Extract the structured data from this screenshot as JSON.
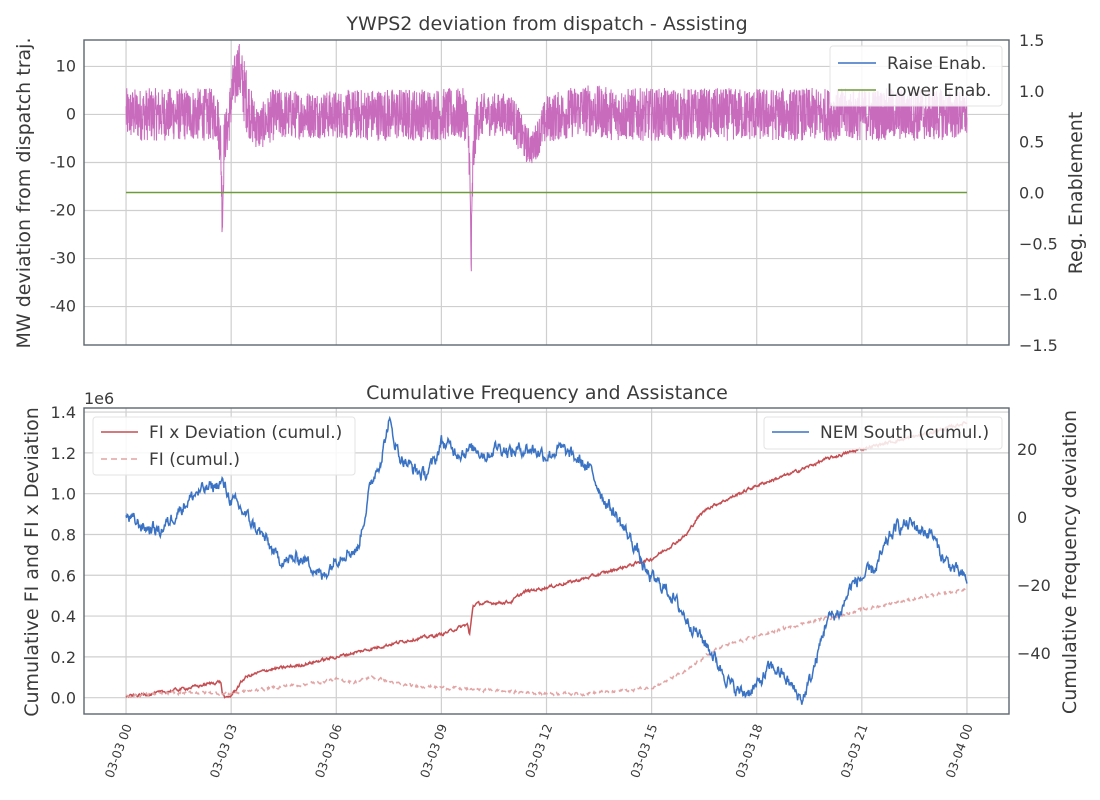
{
  "chart_data": [
    {
      "type": "line",
      "title": "YWPS2 deviation from dispatch - Assisting",
      "ylabel": "MW deviation from dispatch traj.",
      "y2label": "Reg. Enablement",
      "ylim": [
        -48,
        15.5
      ],
      "y2lim": [
        -1.5,
        1.5
      ],
      "yticks": [
        10,
        0,
        -10,
        -20,
        -30,
        -40
      ],
      "y2ticks": [
        1.5,
        1.0,
        0.5,
        0.0,
        -0.5,
        -1.0,
        -1.5
      ],
      "y2tick_labels": [
        "1.5",
        "1.0",
        "0.5",
        "0.0",
        "−0.5",
        "−1.0",
        "−1.5"
      ],
      "xlim": [
        -1.2,
        25.2
      ],
      "x_unit": "hours since 03-03 00:00",
      "legend_position": "upper right",
      "series": [
        {
          "name": "MW deviation",
          "color": "#c86bbd",
          "axis": "left",
          "style": "noisy",
          "x": [
            0,
            1,
            2,
            2.6,
            2.7,
            2.75,
            2.8,
            2.9,
            3.0,
            3.2,
            3.4,
            3.6,
            3.8,
            4.2,
            5,
            6,
            7,
            8,
            9,
            9.7,
            9.8,
            9.85,
            9.9,
            10.0,
            10.2,
            10.5,
            11,
            11.2,
            11.4,
            11.6,
            12,
            13,
            14,
            15,
            16,
            17,
            18,
            19,
            20,
            21,
            22,
            23,
            24
          ],
          "y": [
            0,
            0,
            0,
            0,
            -6,
            -22,
            -5,
            -3,
            3,
            10,
            4,
            -1,
            -3,
            0,
            0,
            0,
            0,
            0,
            0,
            0,
            -8,
            -32,
            -10,
            -1,
            0,
            0,
            0,
            -3,
            -6,
            -7,
            -1,
            1,
            0,
            0,
            0,
            0,
            0,
            0,
            0,
            0,
            0,
            0,
            0
          ],
          "noise": [
            5.5,
            5.5,
            5.5,
            5.5,
            5.5,
            6.5,
            5.5,
            5,
            6,
            6,
            7,
            5.5,
            4.5,
            5.5,
            5,
            5,
            5.5,
            5.5,
            5.5,
            5.5,
            5.5,
            8,
            5.5,
            5,
            4.5,
            4.5,
            4.5,
            4.5,
            4,
            3.5,
            5,
            5.5,
            5.5,
            5.5,
            5.5,
            5.5,
            5.5,
            5.5,
            5.5,
            5.5,
            5.5,
            5.5,
            5
          ]
        },
        {
          "name": "Raise Enab.",
          "color": "#3a72c4",
          "axis": "right",
          "x": [],
          "y": []
        },
        {
          "name": "Lower Enab.",
          "color": "#6d9a3a",
          "axis": "right",
          "x": [
            0,
            24
          ],
          "y": [
            0,
            0
          ]
        }
      ]
    },
    {
      "type": "line",
      "title": "Cumulative Frequency and Assistance",
      "ylabel": "Cumulative FI and FI x Deviation",
      "y2label": "Cumulative frequency deviation",
      "offset_text": "1e6",
      "ylim": [
        -0.08,
        1.42
      ],
      "y2lim": [
        -58,
        32
      ],
      "yticks": [
        0.0,
        0.2,
        0.4,
        0.6,
        0.8,
        1.0,
        1.2,
        1.4
      ],
      "ytick_labels": [
        "0.0",
        "0.2",
        "0.4",
        "0.6",
        "0.8",
        "1.0",
        "1.2",
        "1.4"
      ],
      "y2ticks": [
        20,
        0,
        -20,
        -40
      ],
      "y2tick_labels": [
        "20",
        "0",
        "−20",
        "−40"
      ],
      "xlim": [
        -1.2,
        25.2
      ],
      "x_unit": "hours since 03-03 00:00",
      "xticks": [
        0,
        3,
        6,
        9,
        12,
        15,
        18,
        21,
        24
      ],
      "xtick_labels": [
        "03-03 00",
        "03-03 03",
        "03-03 06",
        "03-03 09",
        "03-03 12",
        "03-03 15",
        "03-03 18",
        "03-03 21",
        "03-04 00"
      ],
      "series": [
        {
          "name": "FI x Deviation (cumul.)",
          "color": "#c44e52",
          "axis": "left",
          "style": "solid",
          "wiggle": 0.006,
          "x": [
            0,
            1,
            2,
            2.7,
            2.75,
            2.85,
            3.0,
            3.4,
            4,
            5,
            6,
            7,
            8,
            9,
            9.75,
            9.8,
            9.9,
            10,
            11,
            11.2,
            11.4,
            12,
            13,
            14,
            15,
            15.6,
            16,
            16.3,
            16.6,
            17,
            18,
            19,
            20,
            21,
            22,
            23,
            24
          ],
          "y": [
            0.005,
            0.025,
            0.055,
            0.08,
            0.02,
            -0.005,
            0.01,
            0.1,
            0.135,
            0.16,
            0.2,
            0.24,
            0.28,
            0.31,
            0.36,
            0.3,
            0.45,
            0.46,
            0.47,
            0.5,
            0.52,
            0.54,
            0.58,
            0.63,
            0.68,
            0.75,
            0.8,
            0.88,
            0.93,
            0.96,
            1.04,
            1.1,
            1.17,
            1.22,
            1.26,
            1.3,
            1.35
          ]
        },
        {
          "name": "FI (cumul.)",
          "color": "#e3a4a4",
          "axis": "left",
          "style": "dashed",
          "wiggle": 0.006,
          "x": [
            0,
            1,
            2,
            3,
            4,
            5,
            6,
            6.5,
            7,
            8,
            9,
            10,
            11,
            12,
            13,
            14,
            15,
            16,
            16.5,
            17,
            18,
            19,
            20,
            21,
            22,
            23,
            24
          ],
          "y": [
            0.01,
            0.02,
            0.025,
            0.02,
            0.045,
            0.065,
            0.09,
            0.075,
            0.1,
            0.06,
            0.05,
            0.04,
            0.03,
            0.02,
            0.02,
            0.03,
            0.05,
            0.13,
            0.2,
            0.25,
            0.3,
            0.35,
            0.39,
            0.43,
            0.47,
            0.5,
            0.53
          ]
        },
        {
          "name": "NEM South (cumul.)",
          "color": "#3a72c4",
          "axis": "right",
          "style": "solid",
          "wiggle": 1.6,
          "x": [
            0,
            0.5,
            1,
            1.5,
            2,
            2.5,
            2.75,
            3,
            3.3,
            3.6,
            4,
            4.3,
            4.6,
            5,
            5.3,
            5.6,
            6,
            6.3,
            6.6,
            7,
            7.3,
            7.5,
            7.8,
            8.1,
            8.5,
            8.8,
            9,
            9.5,
            10,
            10.3,
            10.6,
            11,
            11.3,
            11.6,
            12,
            12.4,
            12.7,
            13,
            13.3,
            13.6,
            14,
            14.3,
            14.6,
            14.8,
            15,
            15.5,
            16,
            16.3,
            16.6,
            17,
            17.3,
            17.6,
            18,
            18.4,
            18.7,
            19,
            19.3,
            19.6,
            20,
            20.4,
            20.7,
            21,
            21.4,
            21.8,
            22,
            22.4,
            22.7,
            23,
            23.3,
            23.6,
            24
          ],
          "y": [
            0,
            -3,
            -4,
            2,
            7,
            9,
            10,
            5,
            2,
            -2,
            -7,
            -12,
            -13,
            -12,
            -14,
            -18,
            -12,
            -10,
            -10,
            10,
            18,
            28,
            18,
            15,
            12,
            16,
            22,
            19,
            20,
            18,
            21,
            19,
            20,
            20,
            18,
            20,
            18,
            16,
            13,
            6,
            0,
            -5,
            -10,
            -16,
            -18,
            -22,
            -30,
            -34,
            -38,
            -45,
            -50,
            -52,
            -50,
            -44,
            -46,
            -50,
            -54,
            -46,
            -30,
            -28,
            -20,
            -18,
            -15,
            -6,
            -3,
            -2,
            -4,
            -5,
            -12,
            -15,
            -19
          ]
        }
      ]
    }
  ]
}
